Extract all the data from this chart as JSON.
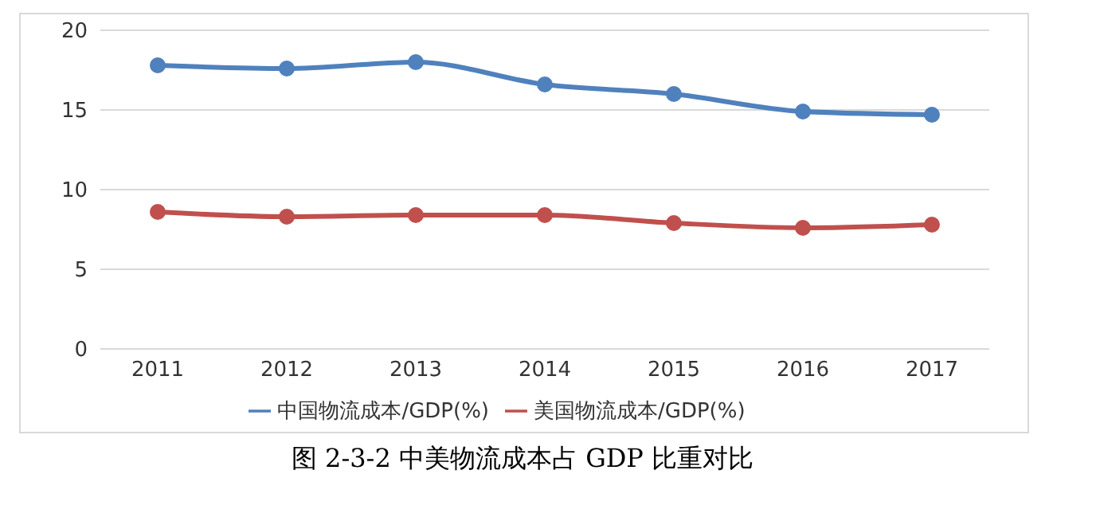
{
  "chart_data": {
    "type": "line",
    "categories": [
      "2011",
      "2012",
      "2013",
      "2014",
      "2015",
      "2016",
      "2017"
    ],
    "series": [
      {
        "name": "中国物流成本/GDP(%)",
        "color": "#4f81bd",
        "values": [
          17.8,
          17.6,
          18.0,
          16.6,
          16.0,
          14.9,
          14.7
        ]
      },
      {
        "name": "美国物流成本/GDP(%)",
        "color": "#c0504d",
        "values": [
          8.6,
          8.3,
          8.4,
          8.4,
          7.9,
          7.6,
          7.8
        ]
      }
    ],
    "ylim": [
      0,
      20
    ],
    "yticks": [
      0,
      5,
      10,
      15,
      20
    ],
    "grid": "y",
    "legend": "bottom",
    "marker": "circle",
    "line_style": "solid",
    "annotations": [
      "图 2-3-2 中美物流成本占 GDP 比重对比"
    ]
  }
}
